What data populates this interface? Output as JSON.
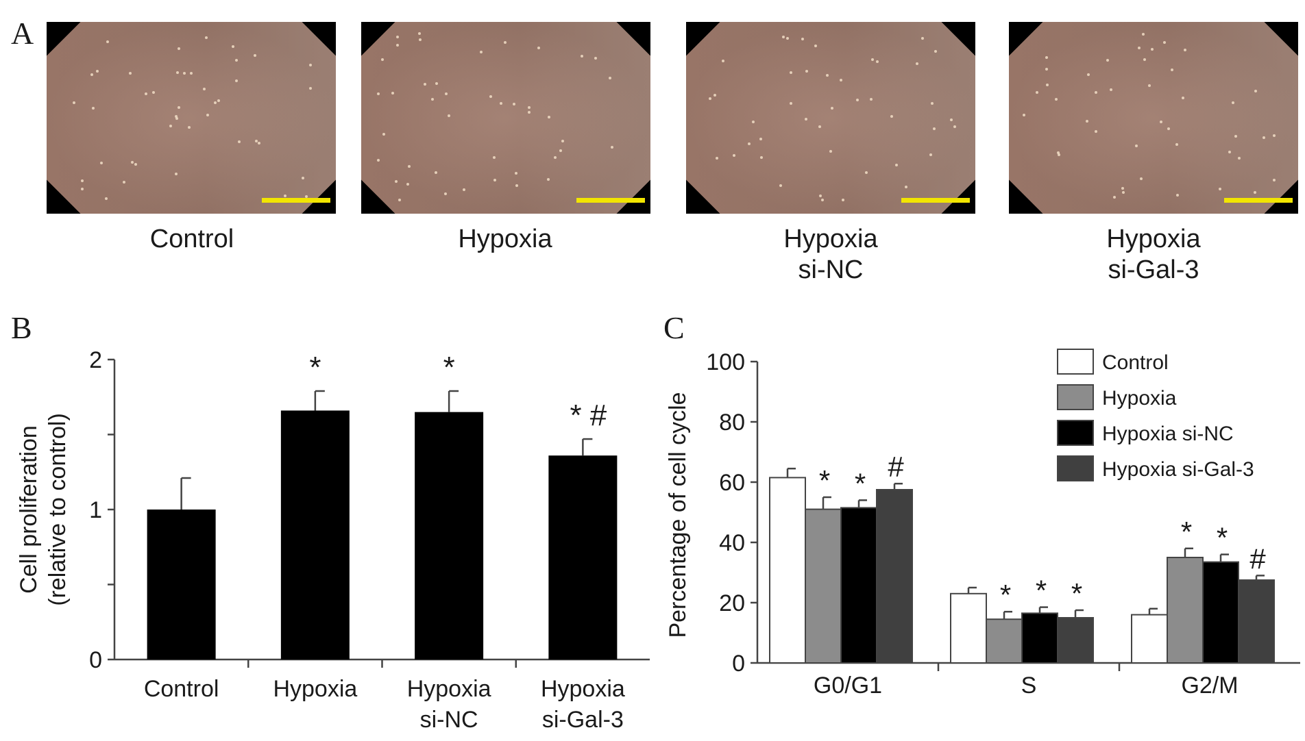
{
  "panels": {
    "a": {
      "letter": "A"
    },
    "b": {
      "letter": "B"
    },
    "c": {
      "letter": "C"
    }
  },
  "micrographs": [
    {
      "label_line1": "Control",
      "label_line2": ""
    },
    {
      "label_line1": "Hypoxia",
      "label_line2": ""
    },
    {
      "label_line1": "Hypoxia",
      "label_line2": "si-NC"
    },
    {
      "label_line1": "Hypoxia",
      "label_line2": "si-Gal-3"
    }
  ],
  "colors": {
    "bar_b": "#000000",
    "control": "#ffffff",
    "hypoxia": "#8c8c8c",
    "hypoxia_si_nc": "#000000",
    "hypoxia_si_gal3": "#404040",
    "scale_bar": "#f2e500"
  },
  "chart_data": [
    {
      "type": "bar",
      "panel": "B",
      "ylabel_line1": "Cell proliferation",
      "ylabel_line2": "(relative to control)",
      "ylim": [
        0,
        2
      ],
      "yticks": [
        "0",
        "1",
        "2"
      ],
      "categories": [
        {
          "line1": "Control",
          "line2": ""
        },
        {
          "line1": "Hypoxia",
          "line2": ""
        },
        {
          "line1": "Hypoxia",
          "line2": "si-NC"
        },
        {
          "line1": "Hypoxia",
          "line2": "si-Gal-3"
        }
      ],
      "values": [
        1.0,
        1.66,
        1.65,
        1.36
      ],
      "errors": [
        0.21,
        0.13,
        0.14,
        0.11
      ],
      "annotations": [
        "",
        "*",
        "*",
        "* #"
      ]
    },
    {
      "type": "bar",
      "panel": "C",
      "ylabel": "Percentage of cell cycle",
      "ylim": [
        0,
        100
      ],
      "yticks": [
        "0",
        "20",
        "40",
        "60",
        "80",
        "100"
      ],
      "categories": [
        "G0/G1",
        "S",
        "G2/M"
      ],
      "series": [
        {
          "name": "Control",
          "values": [
            61.5,
            23.0,
            16.0
          ],
          "errors": [
            3.0,
            2.0,
            2.0
          ],
          "annotations": [
            "",
            "",
            ""
          ]
        },
        {
          "name": "Hypoxia",
          "values": [
            51.0,
            14.5,
            35.0
          ],
          "errors": [
            4.0,
            2.5,
            3.0
          ],
          "annotations": [
            "*",
            "*",
            "*"
          ]
        },
        {
          "name": "Hypoxia si-NC",
          "values": [
            51.5,
            16.5,
            33.5
          ],
          "errors": [
            2.5,
            2.0,
            2.5
          ],
          "annotations": [
            "*",
            "*",
            "*"
          ]
        },
        {
          "name": "Hypoxia si-Gal-3",
          "values": [
            57.5,
            15.0,
            27.5
          ],
          "errors": [
            2.0,
            2.5,
            1.5
          ],
          "annotations": [
            "#",
            "*",
            "#"
          ]
        }
      ],
      "legend_position": "top-right"
    }
  ]
}
